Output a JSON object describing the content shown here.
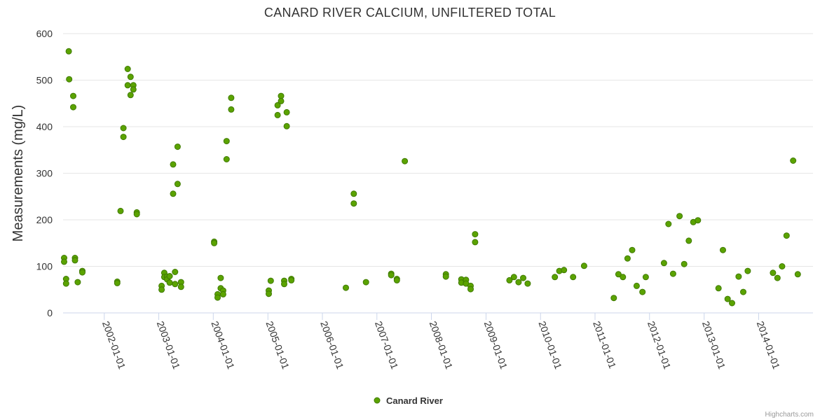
{
  "chart_data": {
    "type": "scatter",
    "title": "CANARD RIVER CALCIUM, UNFILTERED TOTAL",
    "xlabel": "",
    "ylabel": "Measurements (mg/L)",
    "ylim": [
      0,
      600
    ],
    "yticks": [
      0,
      100,
      200,
      300,
      400,
      500,
      600
    ],
    "xlim": [
      "2001-03-31",
      "2014-12-31"
    ],
    "xticks": [
      "2002-01-01",
      "2003-01-01",
      "2004-01-01",
      "2005-01-01",
      "2006-01-01",
      "2007-01-01",
      "2008-01-01",
      "2009-01-01",
      "2010-01-01",
      "2011-01-01",
      "2012-01-01",
      "2013-01-01",
      "2014-01-01"
    ],
    "grid": true,
    "legend_position": "bottom",
    "series": [
      {
        "name": "Canard River",
        "color": "#5ba300",
        "points": [
          [
            "2001-04-07",
            118
          ],
          [
            "2001-04-07",
            110
          ],
          [
            "2001-04-20",
            73
          ],
          [
            "2001-04-20",
            63
          ],
          [
            "2001-05-08",
            562
          ],
          [
            "2001-05-11",
            502
          ],
          [
            "2001-06-07",
            466
          ],
          [
            "2001-06-07",
            442
          ],
          [
            "2001-06-19",
            118
          ],
          [
            "2001-06-19",
            113
          ],
          [
            "2001-07-07",
            66
          ],
          [
            "2001-08-07",
            90
          ],
          [
            "2001-08-07",
            87
          ],
          [
            "2002-03-29",
            67
          ],
          [
            "2002-03-29",
            64
          ],
          [
            "2002-04-20",
            219
          ],
          [
            "2002-05-09",
            397
          ],
          [
            "2002-05-09",
            378
          ],
          [
            "2002-06-07",
            524
          ],
          [
            "2002-06-07",
            489
          ],
          [
            "2002-06-26",
            507
          ],
          [
            "2002-06-26",
            468
          ],
          [
            "2002-07-15",
            489
          ],
          [
            "2002-07-15",
            480
          ],
          [
            "2002-08-07",
            216
          ],
          [
            "2002-08-07",
            212
          ],
          [
            "2003-01-20",
            58
          ],
          [
            "2003-01-20",
            50
          ],
          [
            "2003-02-07",
            86
          ],
          [
            "2003-02-07",
            77
          ],
          [
            "2003-02-26",
            78
          ],
          [
            "2003-02-26",
            72
          ],
          [
            "2003-03-15",
            79
          ],
          [
            "2003-03-15",
            65
          ],
          [
            "2003-04-07",
            319
          ],
          [
            "2003-04-07",
            256
          ],
          [
            "2003-04-20",
            88
          ],
          [
            "2003-04-20",
            62
          ],
          [
            "2003-05-07",
            357
          ],
          [
            "2003-05-07",
            277
          ],
          [
            "2003-05-30",
            66
          ],
          [
            "2003-05-30",
            56
          ],
          [
            "2004-01-07",
            153
          ],
          [
            "2004-01-07",
            150
          ],
          [
            "2004-01-30",
            40
          ],
          [
            "2004-01-30",
            33
          ],
          [
            "2004-02-20",
            75
          ],
          [
            "2004-02-20",
            53
          ],
          [
            "2004-03-07",
            48
          ],
          [
            "2004-03-07",
            40
          ],
          [
            "2004-03-30",
            369
          ],
          [
            "2004-03-30",
            330
          ],
          [
            "2004-04-30",
            462
          ],
          [
            "2004-04-30",
            437
          ],
          [
            "2005-01-07",
            48
          ],
          [
            "2005-01-07",
            41
          ],
          [
            "2005-01-20",
            69
          ],
          [
            "2005-03-07",
            446
          ],
          [
            "2005-03-07",
            425
          ],
          [
            "2005-03-30",
            466
          ],
          [
            "2005-03-30",
            455
          ],
          [
            "2005-04-20",
            69
          ],
          [
            "2005-04-20",
            62
          ],
          [
            "2005-05-07",
            431
          ],
          [
            "2005-05-07",
            401
          ],
          [
            "2005-06-07",
            73
          ],
          [
            "2005-06-07",
            70
          ],
          [
            "2006-06-07",
            54
          ],
          [
            "2006-07-30",
            256
          ],
          [
            "2006-07-30",
            235
          ],
          [
            "2006-10-20",
            66
          ],
          [
            "2007-04-07",
            84
          ],
          [
            "2007-04-07",
            81
          ],
          [
            "2007-05-15",
            73
          ],
          [
            "2007-05-15",
            70
          ],
          [
            "2007-07-07",
            326
          ],
          [
            "2008-04-07",
            83
          ],
          [
            "2008-04-07",
            78
          ],
          [
            "2008-07-20",
            72
          ],
          [
            "2008-07-20",
            65
          ],
          [
            "2008-08-20",
            71
          ],
          [
            "2008-08-20",
            63
          ],
          [
            "2008-09-20",
            58
          ],
          [
            "2008-09-20",
            51
          ],
          [
            "2008-10-20",
            169
          ],
          [
            "2008-10-20",
            152
          ],
          [
            "2009-06-07",
            70
          ],
          [
            "2009-07-07",
            77
          ],
          [
            "2009-08-07",
            66
          ],
          [
            "2009-09-07",
            75
          ],
          [
            "2009-10-07",
            63
          ],
          [
            "2010-04-07",
            77
          ],
          [
            "2010-05-07",
            90
          ],
          [
            "2010-06-07",
            92
          ],
          [
            "2010-08-07",
            77
          ],
          [
            "2010-10-20",
            101
          ],
          [
            "2011-05-07",
            32
          ],
          [
            "2011-06-07",
            83
          ],
          [
            "2011-07-07",
            77
          ],
          [
            "2011-08-07",
            117
          ],
          [
            "2011-09-07",
            135
          ],
          [
            "2011-10-07",
            58
          ],
          [
            "2011-11-15",
            45
          ],
          [
            "2011-12-07",
            77
          ],
          [
            "2012-04-07",
            107
          ],
          [
            "2012-05-07",
            191
          ],
          [
            "2012-06-07",
            84
          ],
          [
            "2012-07-20",
            208
          ],
          [
            "2012-08-20",
            105
          ],
          [
            "2012-09-20",
            155
          ],
          [
            "2012-10-20",
            195
          ],
          [
            "2012-11-20",
            199
          ],
          [
            "2013-04-07",
            53
          ],
          [
            "2013-05-07",
            135
          ],
          [
            "2013-06-07",
            30
          ],
          [
            "2013-07-07",
            21
          ],
          [
            "2013-08-20",
            78
          ],
          [
            "2013-09-20",
            45
          ],
          [
            "2013-10-20",
            90
          ],
          [
            "2014-04-07",
            86
          ],
          [
            "2014-05-07",
            75
          ],
          [
            "2014-06-07",
            100
          ],
          [
            "2014-07-07",
            166
          ],
          [
            "2014-08-20",
            327
          ],
          [
            "2014-09-20",
            83
          ]
        ]
      }
    ]
  },
  "credits": "Highcharts.com"
}
